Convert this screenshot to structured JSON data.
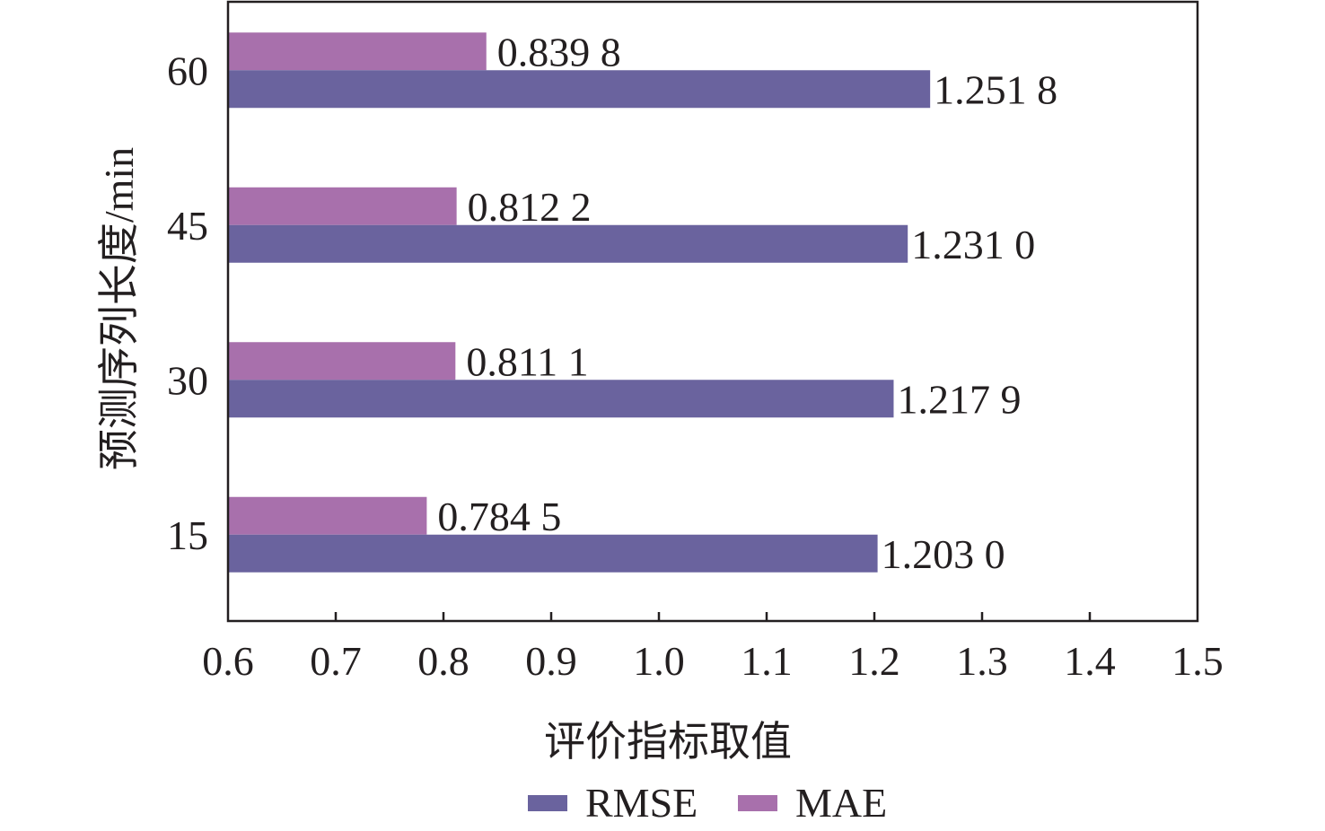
{
  "chart_data": {
    "type": "bar",
    "orientation": "horizontal",
    "categories": [
      "15",
      "30",
      "45",
      "60"
    ],
    "series": [
      {
        "name": "RMSE",
        "values": [
          1.203,
          1.2179,
          1.231,
          1.2518
        ],
        "labels": [
          "1.203 0",
          "1.217 9",
          "1.231 0",
          "1.251 8"
        ],
        "color": "#6a639e"
      },
      {
        "name": "MAE",
        "values": [
          0.7845,
          0.8111,
          0.8122,
          0.8398
        ],
        "labels": [
          "0.784 5",
          "0.811 1",
          "0.812 2",
          "0.839 8"
        ],
        "color": "#a870ac"
      }
    ],
    "xlabel": "评价指标取值",
    "ylabel": "预测序列长度/min",
    "xlim": [
      0.6,
      1.5
    ],
    "xticks": [
      "0.6",
      "0.7",
      "0.8",
      "0.9",
      "1.0",
      "1.1",
      "1.2",
      "1.3",
      "1.4",
      "1.5"
    ],
    "grid": false,
    "legend_position": "bottom"
  }
}
